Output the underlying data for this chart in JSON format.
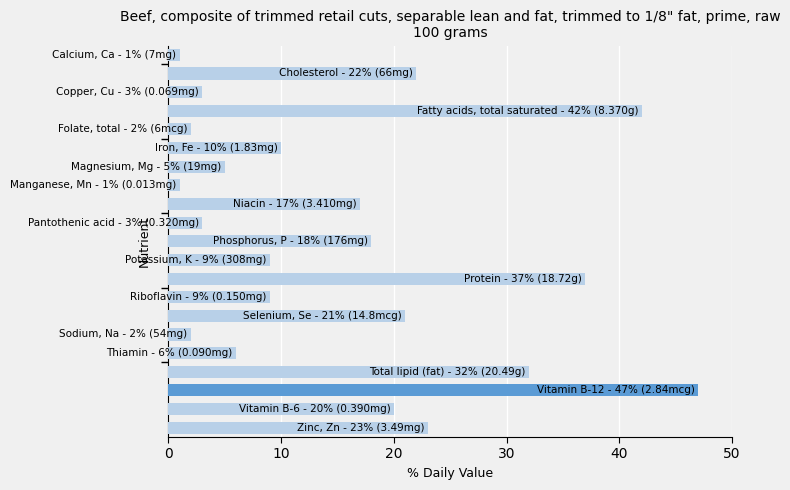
{
  "title": "Beef, composite of trimmed retail cuts, separable lean and fat, trimmed to 1/8\" fat, prime, raw\n100 grams",
  "xlabel": "% Daily Value",
  "ylabel": "Nutrient",
  "nutrients": [
    {
      "name": "Calcium, Ca - 1% (7mg)",
      "value": 1
    },
    {
      "name": "Cholesterol - 22% (66mg)",
      "value": 22
    },
    {
      "name": "Copper, Cu - 3% (0.069mg)",
      "value": 3
    },
    {
      "name": "Fatty acids, total saturated - 42% (8.370g)",
      "value": 42
    },
    {
      "name": "Folate, total - 2% (6mcg)",
      "value": 2
    },
    {
      "name": "Iron, Fe - 10% (1.83mg)",
      "value": 10
    },
    {
      "name": "Magnesium, Mg - 5% (19mg)",
      "value": 5
    },
    {
      "name": "Manganese, Mn - 1% (0.013mg)",
      "value": 1
    },
    {
      "name": "Niacin - 17% (3.410mg)",
      "value": 17
    },
    {
      "name": "Pantothenic acid - 3% (0.320mg)",
      "value": 3
    },
    {
      "name": "Phosphorus, P - 18% (176mg)",
      "value": 18
    },
    {
      "name": "Potassium, K - 9% (308mg)",
      "value": 9
    },
    {
      "name": "Protein - 37% (18.72g)",
      "value": 37
    },
    {
      "name": "Riboflavin - 9% (0.150mg)",
      "value": 9
    },
    {
      "name": "Selenium, Se - 21% (14.8mcg)",
      "value": 21
    },
    {
      "name": "Sodium, Na - 2% (54mg)",
      "value": 2
    },
    {
      "name": "Thiamin - 6% (0.090mg)",
      "value": 6
    },
    {
      "name": "Total lipid (fat) - 32% (20.49g)",
      "value": 32
    },
    {
      "name": "Vitamin B-12 - 47% (2.84mcg)",
      "value": 47
    },
    {
      "name": "Vitamin B-6 - 20% (0.390mg)",
      "value": 20
    },
    {
      "name": "Zinc, Zn - 23% (3.49mg)",
      "value": 23
    }
  ],
  "bar_color": "#b8d0e8",
  "bar_color_highlight": "#5b9bd5",
  "highlight_index": 18,
  "background_color": "#f0f0f0",
  "xlim": [
    0,
    50
  ],
  "xticks": [
    0,
    10,
    20,
    30,
    40,
    50
  ],
  "title_fontsize": 10,
  "label_fontsize": 7.5,
  "axis_fontsize": 9,
  "ytick_positions": [
    3.5,
    7.5,
    11.5,
    15.5,
    19.5
  ]
}
